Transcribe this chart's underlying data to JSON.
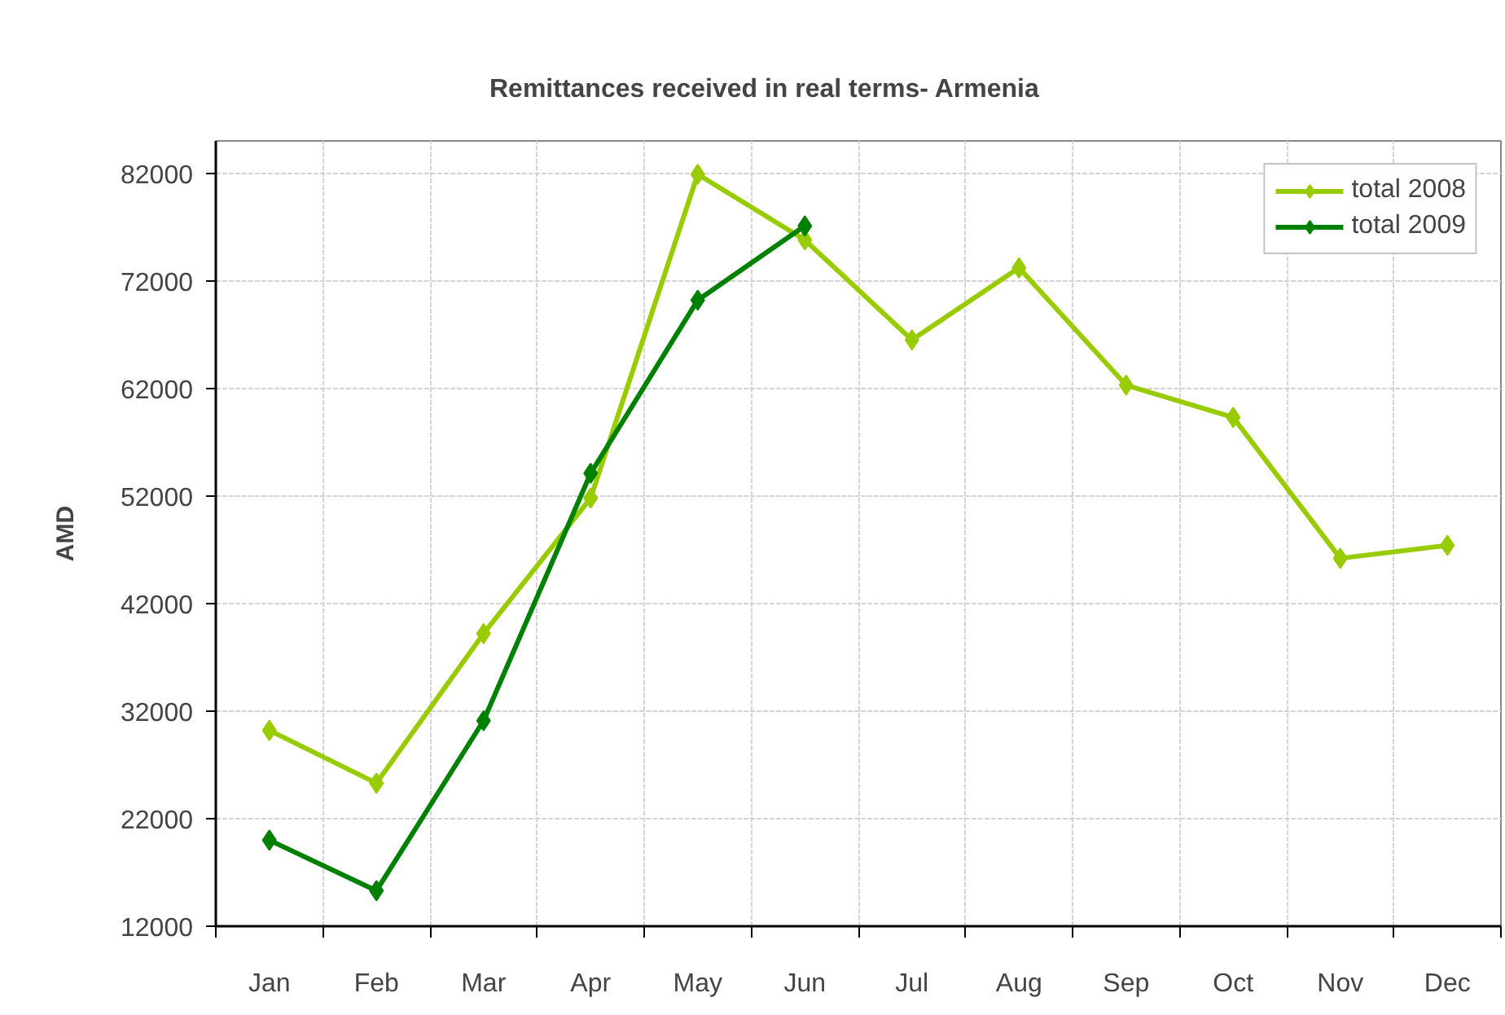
{
  "chart_data": {
    "type": "line",
    "title": "Remittances received in real terms- Armenia",
    "ylabel": "AMD",
    "categories": [
      "Jan",
      "Feb",
      "Mar",
      "Apr",
      "May",
      "Jun",
      "Jul",
      "Aug",
      "Sep",
      "Oct",
      "Nov",
      "Dec"
    ],
    "series": [
      {
        "name": "total 2008",
        "color": "#99cc00",
        "values": [
          30200,
          25300,
          39200,
          51800,
          81900,
          75800,
          66500,
          73200,
          62300,
          59300,
          46200,
          47400
        ]
      },
      {
        "name": "total 2009",
        "color": "#008000",
        "values": [
          20000,
          15300,
          31100,
          54100,
          70200,
          77100,
          null,
          null,
          null,
          null,
          null,
          null
        ]
      }
    ],
    "ylim": [
      12000,
      85000
    ],
    "yticks": [
      12000,
      22000,
      32000,
      42000,
      52000,
      62000,
      72000,
      82000
    ],
    "grid": true,
    "legend": "top right",
    "marker": "diamond",
    "line_style": "solid"
  }
}
